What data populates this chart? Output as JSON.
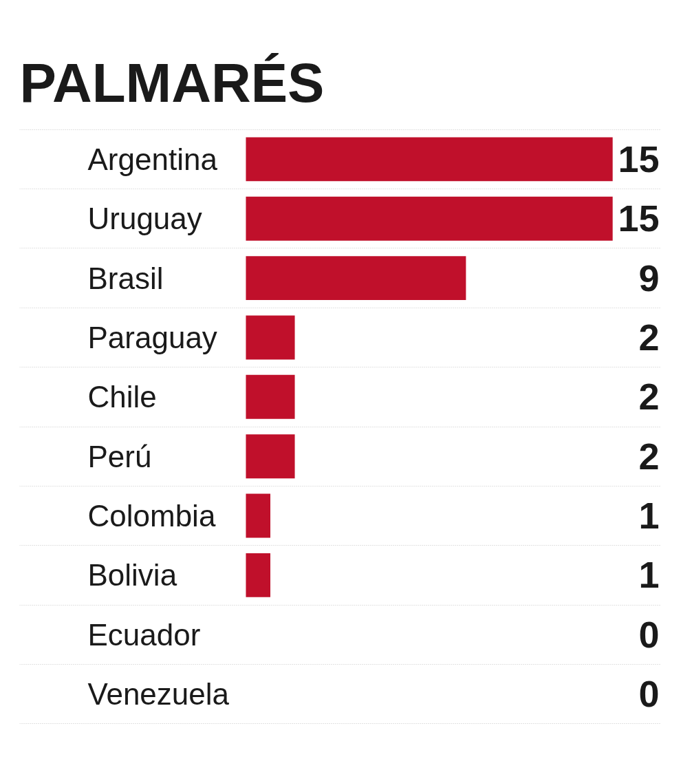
{
  "chart_data": {
    "type": "bar",
    "title": "PALMARÉS",
    "orientation": "horizontal",
    "categories": [
      "Argentina",
      "Uruguay",
      "Brasil",
      "Paraguay",
      "Chile",
      "Perú",
      "Colombia",
      "Bolivia",
      "Ecuador",
      "Venezuela"
    ],
    "values": [
      15,
      15,
      9,
      2,
      2,
      2,
      1,
      1,
      0,
      0
    ],
    "color": "#c0102b",
    "data_labels": true,
    "grid": "y",
    "tick_labels": "y"
  }
}
